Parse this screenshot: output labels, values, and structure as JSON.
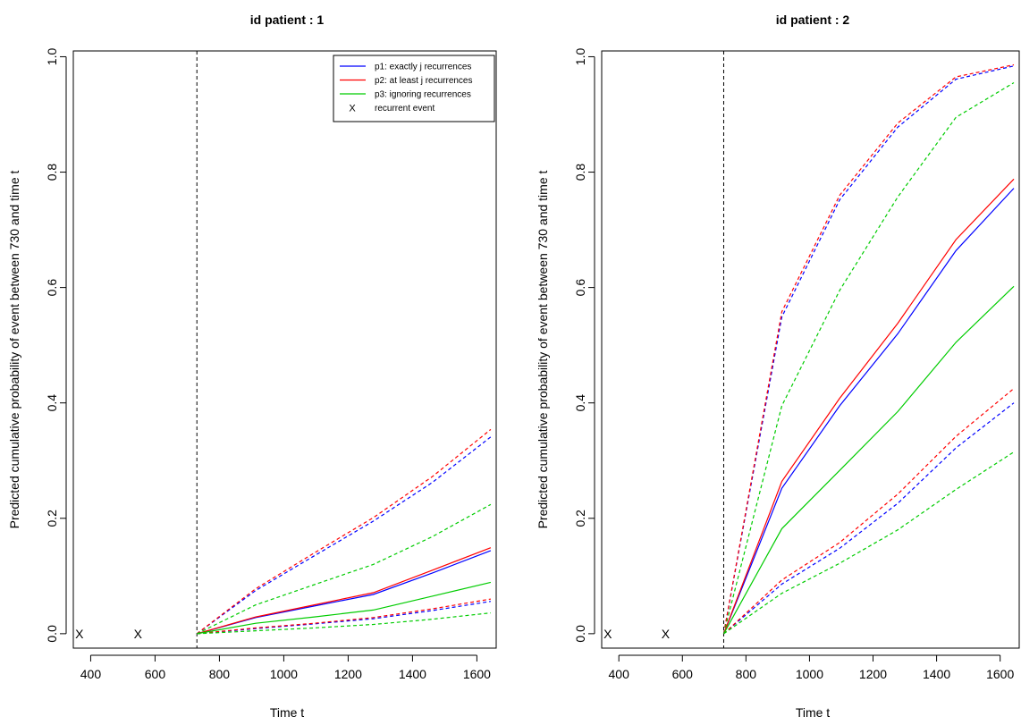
{
  "chart_data": [
    {
      "type": "line",
      "title": "id patient : 1",
      "xlabel": "Time t",
      "ylabel": "Predicted cumulative probability of event between 730 and time t",
      "xlim": [
        346,
        1660
      ],
      "ylim": [
        -0.025,
        1.01
      ],
      "x_ticks": [
        400,
        600,
        800,
        1000,
        1200,
        1400,
        1600
      ],
      "y_ticks": [
        0.0,
        0.2,
        0.4,
        0.6,
        0.8,
        1.0
      ],
      "y_tick_labels": [
        "0.0",
        "0.2",
        "0.4",
        "0.6",
        "0.8",
        "1.0"
      ],
      "landmark_time": 730,
      "recurrent_events": [
        {
          "x": 365,
          "y": 0
        },
        {
          "x": 547,
          "y": 0
        }
      ],
      "series": [
        {
          "name": "p1: exactly j recurrences",
          "color": "#0000ff",
          "style": "solid",
          "x": [
            730,
            913,
            1095,
            1278,
            1461,
            1643
          ],
          "y": [
            0,
            0.028,
            0.048,
            0.068,
            0.105,
            0.144
          ]
        },
        {
          "name": "p2: at least j recurrences",
          "color": "#ff0000",
          "style": "solid",
          "x": [
            730,
            913,
            1095,
            1278,
            1461,
            1643
          ],
          "y": [
            0,
            0.029,
            0.05,
            0.071,
            0.11,
            0.149
          ]
        },
        {
          "name": "p3: ignoring recurrences",
          "color": "#00cc00",
          "style": "solid",
          "x": [
            730,
            913,
            1095,
            1278,
            1461,
            1643
          ],
          "y": [
            0,
            0.018,
            0.029,
            0.041,
            0.065,
            0.089
          ]
        },
        {
          "color": "#0000ff",
          "style": "dashed",
          "x": [
            730,
            913,
            1095,
            1278,
            1461,
            1643
          ],
          "y": [
            0,
            0.075,
            0.135,
            0.195,
            0.262,
            0.341
          ]
        },
        {
          "color": "#ff0000",
          "style": "dashed",
          "x": [
            730,
            913,
            1095,
            1278,
            1461,
            1643
          ],
          "y": [
            0,
            0.078,
            0.14,
            0.201,
            0.272,
            0.354
          ]
        },
        {
          "color": "#00cc00",
          "style": "dashed",
          "x": [
            730,
            913,
            1095,
            1278,
            1461,
            1643
          ],
          "y": [
            0,
            0.05,
            0.085,
            0.12,
            0.168,
            0.224
          ]
        },
        {
          "color": "#0000ff",
          "style": "dashed",
          "x": [
            730,
            913,
            1095,
            1278,
            1461,
            1643
          ],
          "y": [
            0,
            0.009,
            0.017,
            0.026,
            0.04,
            0.056
          ]
        },
        {
          "color": "#ff0000",
          "style": "dashed",
          "x": [
            730,
            913,
            1095,
            1278,
            1461,
            1643
          ],
          "y": [
            0,
            0.01,
            0.018,
            0.028,
            0.043,
            0.06
          ]
        },
        {
          "color": "#00cc00",
          "style": "dashed",
          "x": [
            730,
            913,
            1095,
            1278,
            1461,
            1643
          ],
          "y": [
            0,
            0.005,
            0.01,
            0.016,
            0.025,
            0.036
          ]
        }
      ],
      "legend": {
        "placement": "top-right",
        "items": [
          {
            "label": "p1: exactly j recurrences",
            "color": "#0000ff",
            "mark": "line"
          },
          {
            "label": "p2: at least j recurrences",
            "color": "#ff0000",
            "mark": "line"
          },
          {
            "label": "p3: ignoring recurrences",
            "color": "#00cc00",
            "mark": "line"
          },
          {
            "label": "recurrent event",
            "color": "#000000",
            "mark": "X"
          }
        ]
      }
    },
    {
      "type": "line",
      "title": "id patient : 2",
      "xlabel": "Time t",
      "ylabel": "Predicted cumulative probability of event between 730 and time t",
      "xlim": [
        346,
        1660
      ],
      "ylim": [
        -0.025,
        1.01
      ],
      "x_ticks": [
        400,
        600,
        800,
        1000,
        1200,
        1400,
        1600
      ],
      "y_ticks": [
        0.0,
        0.2,
        0.4,
        0.6,
        0.8,
        1.0
      ],
      "y_tick_labels": [
        "0.0",
        "0.2",
        "0.4",
        "0.6",
        "0.8",
        "1.0"
      ],
      "landmark_time": 730,
      "recurrent_events": [
        {
          "x": 365,
          "y": 0
        },
        {
          "x": 547,
          "y": 0
        }
      ],
      "series": [
        {
          "name": "p1: exactly j recurrences",
          "color": "#0000ff",
          "style": "solid",
          "x": [
            730,
            913,
            1095,
            1278,
            1461,
            1643
          ],
          "y": [
            0,
            0.252,
            0.395,
            0.52,
            0.664,
            0.772
          ]
        },
        {
          "name": "p2: at least j recurrences",
          "color": "#ff0000",
          "style": "solid",
          "x": [
            730,
            913,
            1095,
            1278,
            1461,
            1643
          ],
          "y": [
            0,
            0.264,
            0.408,
            0.538,
            0.683,
            0.788
          ]
        },
        {
          "name": "p3: ignoring recurrences",
          "color": "#00cc00",
          "style": "solid",
          "x": [
            730,
            913,
            1095,
            1278,
            1461,
            1643
          ],
          "y": [
            0,
            0.182,
            0.283,
            0.385,
            0.505,
            0.602
          ]
        },
        {
          "color": "#0000ff",
          "style": "dashed",
          "x": [
            730,
            913,
            1095,
            1278,
            1461,
            1643
          ],
          "y": [
            0,
            0.549,
            0.752,
            0.878,
            0.961,
            0.984
          ]
        },
        {
          "color": "#ff0000",
          "style": "dashed",
          "x": [
            730,
            913,
            1095,
            1278,
            1461,
            1643
          ],
          "y": [
            0,
            0.558,
            0.76,
            0.885,
            0.965,
            0.986
          ]
        },
        {
          "color": "#00cc00",
          "style": "dashed",
          "x": [
            730,
            913,
            1095,
            1278,
            1461,
            1643
          ],
          "y": [
            0,
            0.395,
            0.595,
            0.757,
            0.895,
            0.955
          ]
        },
        {
          "color": "#0000ff",
          "style": "dashed",
          "x": [
            730,
            913,
            1095,
            1278,
            1461,
            1643
          ],
          "y": [
            0,
            0.086,
            0.148,
            0.226,
            0.322,
            0.4
          ]
        },
        {
          "color": "#ff0000",
          "style": "dashed",
          "x": [
            730,
            913,
            1095,
            1278,
            1461,
            1643
          ],
          "y": [
            0,
            0.093,
            0.158,
            0.242,
            0.342,
            0.425
          ]
        },
        {
          "color": "#00cc00",
          "style": "dashed",
          "x": [
            730,
            913,
            1095,
            1278,
            1461,
            1643
          ],
          "y": [
            0,
            0.07,
            0.122,
            0.18,
            0.25,
            0.315
          ]
        }
      ]
    }
  ]
}
